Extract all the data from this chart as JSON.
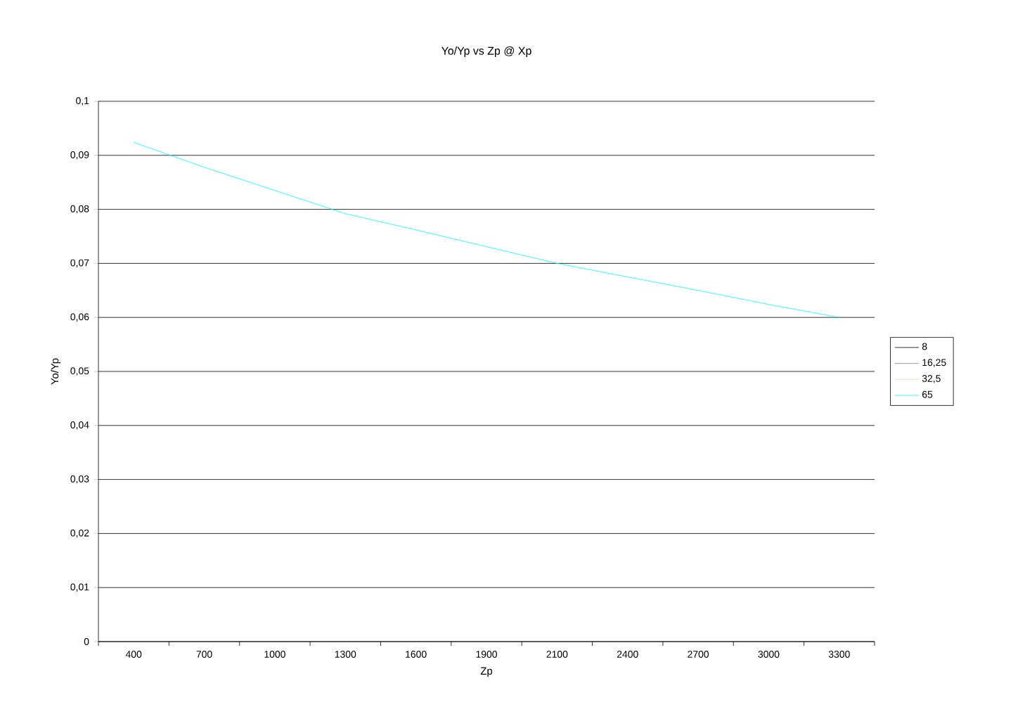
{
  "chart_data": {
    "type": "line",
    "title": "Yo/Yp vs Zp @ Xp",
    "xlabel": "Zp",
    "ylabel": "Yo/Yp",
    "categories": [
      "400",
      "700",
      "1000",
      "1300",
      "1600",
      "1900",
      "2100",
      "2400",
      "2700",
      "3000",
      "3300"
    ],
    "series": [
      {
        "name": "8",
        "color": "#000000",
        "values": [
          null,
          null,
          null,
          null,
          null,
          null,
          null,
          null,
          null,
          null,
          null
        ]
      },
      {
        "name": "16,25",
        "color": "#8e7f9a",
        "values": [
          null,
          null,
          null,
          null,
          null,
          null,
          null,
          null,
          null,
          null,
          null
        ]
      },
      {
        "name": "32,5",
        "color": "#dcdcb4",
        "values": [
          null,
          null,
          null,
          null,
          null,
          null,
          null,
          null,
          null,
          null,
          null
        ]
      },
      {
        "name": "65",
        "color": "#00ffff",
        "values": [
          0.0924,
          0.0878,
          0.0835,
          0.0792,
          0.0762,
          0.0731,
          0.07,
          0.0675,
          0.065,
          0.0624,
          0.06
        ]
      }
    ],
    "ylim": [
      0,
      0.1
    ],
    "yticks": [
      {
        "value": 0,
        "label": "0"
      },
      {
        "value": 0.01,
        "label": "0,01"
      },
      {
        "value": 0.02,
        "label": "0,02"
      },
      {
        "value": 0.03,
        "label": "0,03"
      },
      {
        "value": 0.04,
        "label": "0,04"
      },
      {
        "value": 0.05,
        "label": "0,05"
      },
      {
        "value": 0.06,
        "label": "0,06"
      },
      {
        "value": 0.07,
        "label": "0,07"
      },
      {
        "value": 0.08,
        "label": "0,08"
      },
      {
        "value": 0.09,
        "label": "0,09"
      },
      {
        "value": 0.1,
        "label": "0,1"
      }
    ],
    "grid": "y",
    "legend": "right",
    "marker": "none",
    "line_style": "solid"
  }
}
